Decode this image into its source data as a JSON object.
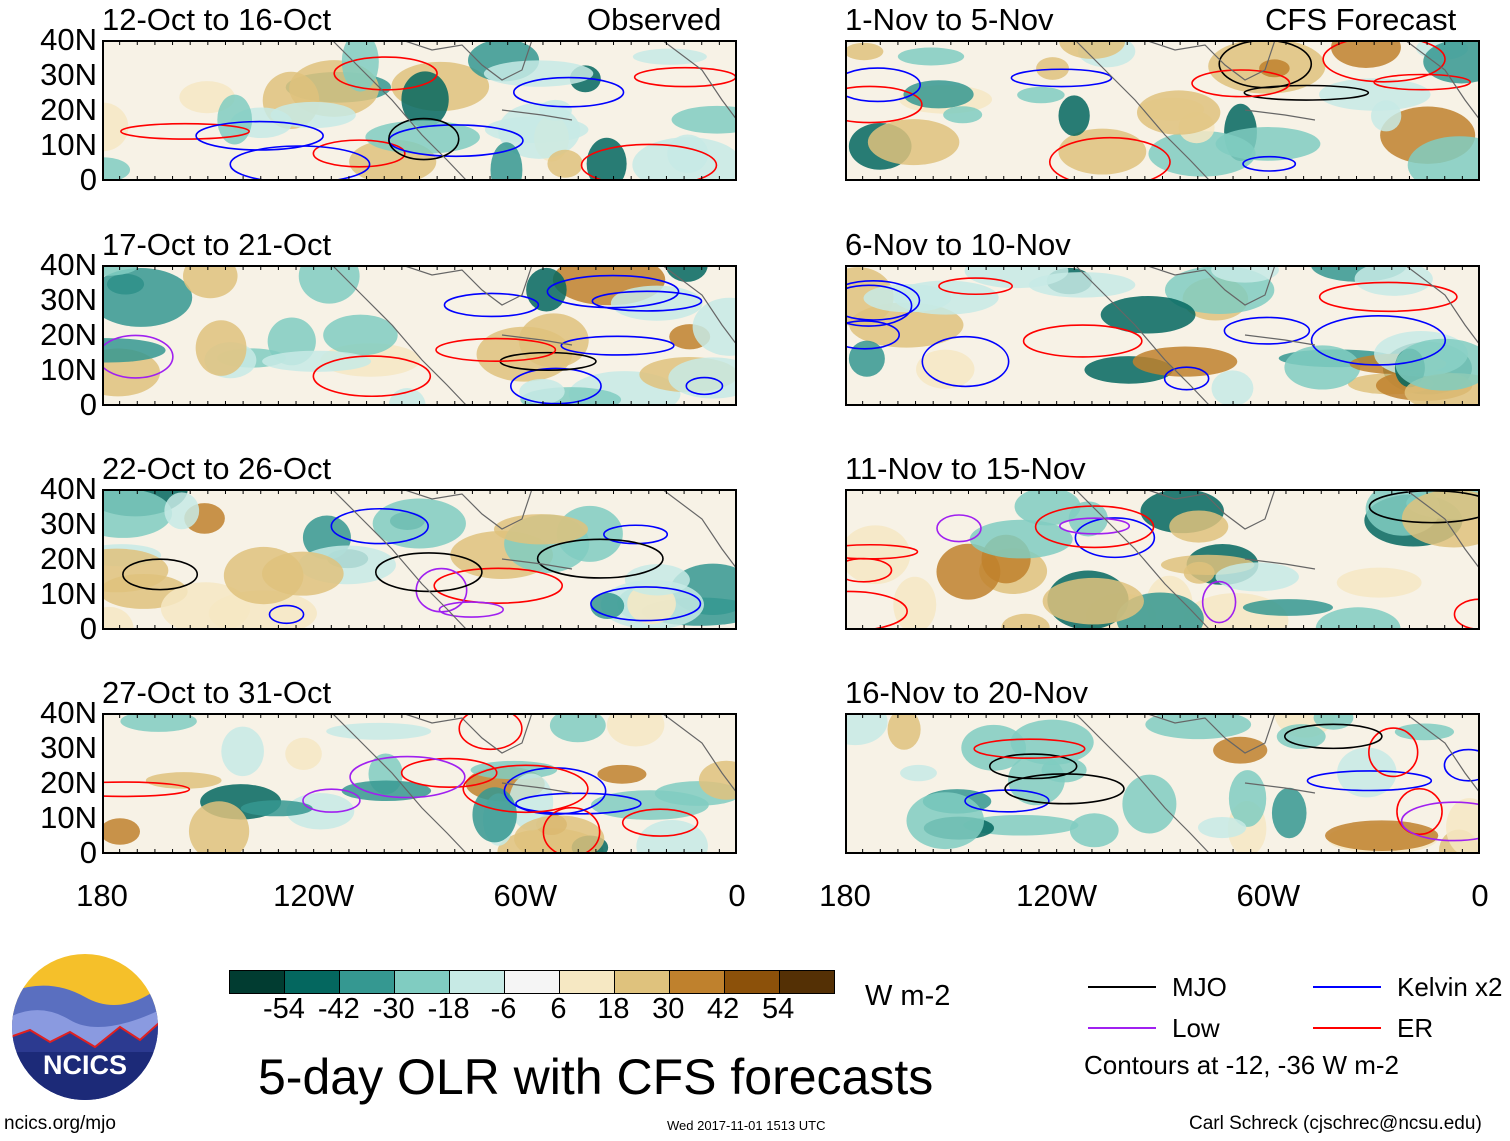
{
  "headers": {
    "observed": "Observed",
    "forecast": "CFS Forecast"
  },
  "panels_left": [
    "12-Oct to 16-Oct",
    "17-Oct to 21-Oct",
    "22-Oct to 26-Oct",
    "27-Oct to 31-Oct"
  ],
  "panels_right": [
    "1-Nov to 5-Nov",
    "6-Nov to 10-Nov",
    "11-Nov to 15-Nov",
    "16-Nov to 20-Nov"
  ],
  "lat_labels": [
    "40N",
    "30N",
    "20N",
    "10N",
    "0"
  ],
  "lon_labels": [
    "180",
    "120W",
    "60W",
    "0"
  ],
  "colorbar": {
    "colors": [
      "#013c31",
      "#04675f",
      "#359891",
      "#80ccc1",
      "#c7eae5",
      "#f5f5f5",
      "#f6e8c3",
      "#dfc27d",
      "#bf812d",
      "#8c510a",
      "#543005"
    ],
    "labels": [
      "-54",
      "-42",
      "-30",
      "-18",
      "-6",
      "6",
      "18",
      "30",
      "42",
      "54"
    ],
    "units": "W m-2"
  },
  "legend": {
    "items": [
      {
        "label": "MJO",
        "color": "#000000"
      },
      {
        "label": "Kelvin x2",
        "color": "#0000ff"
      },
      {
        "label": "Low",
        "color": "#a020f0"
      },
      {
        "label": "ER",
        "color": "#ff0000"
      }
    ],
    "note": "Contours at -12, -36 W m-2"
  },
  "title": "5-day OLR with CFS forecasts",
  "logo_text": "NCICS",
  "footer": {
    "left": "ncics.org/mjo",
    "center": "Wed 2017-11-01 1513 UTC",
    "right": "Carl Schreck (cjschrec@ncsu.edu)"
  }
}
